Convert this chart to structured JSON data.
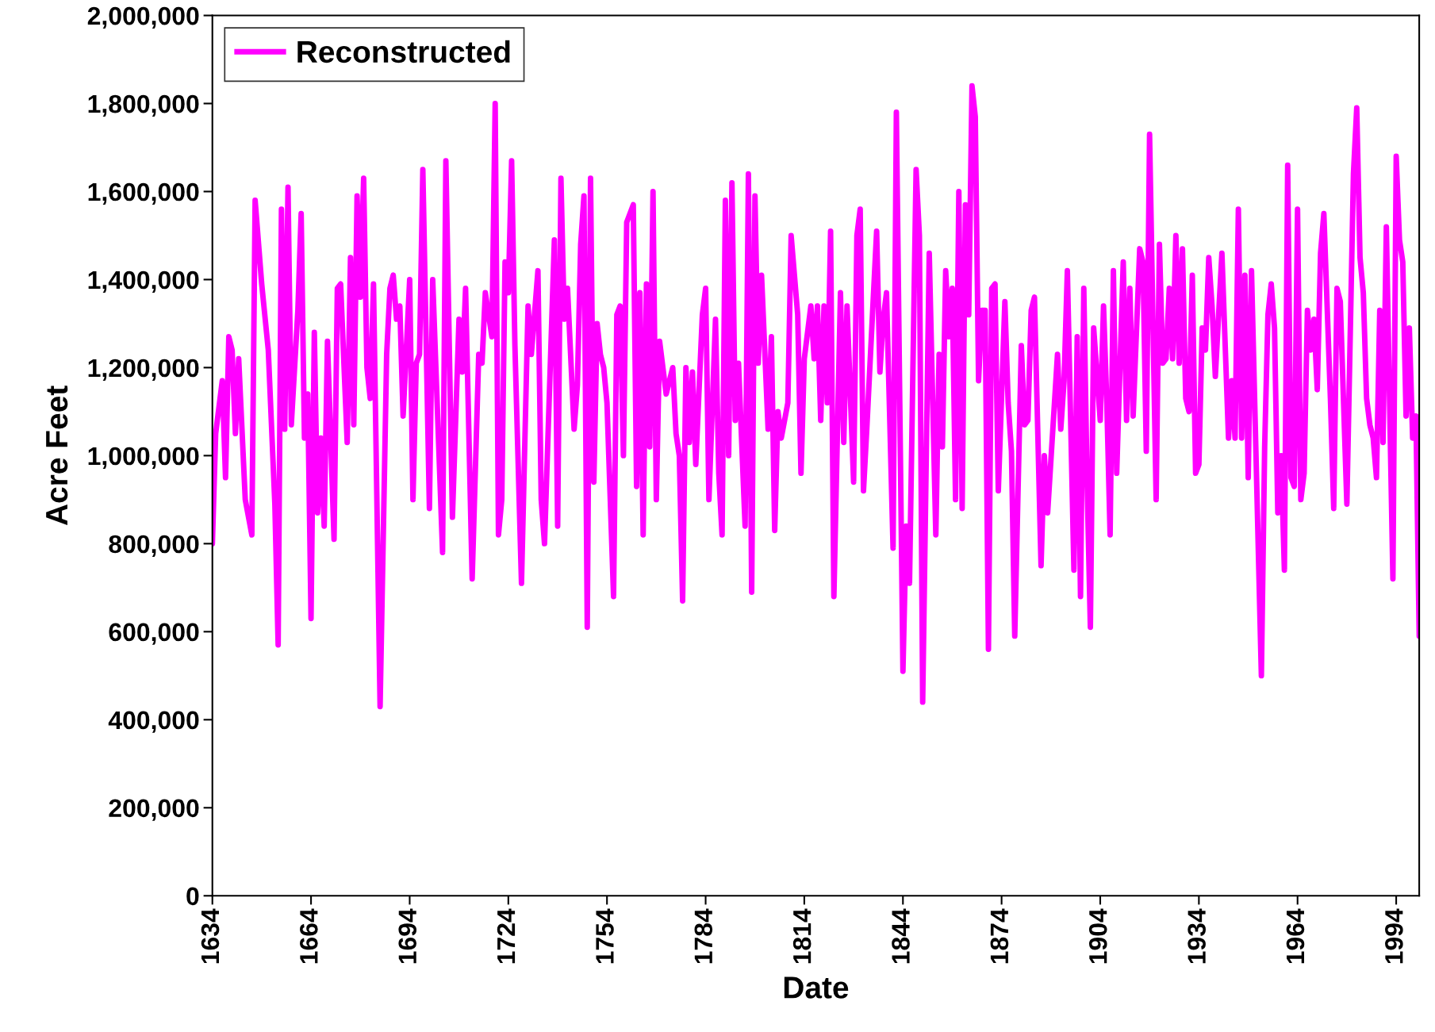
{
  "chart_data": {
    "type": "line",
    "xlabel": "Date",
    "ylabel": "Acre Feet",
    "xlim": [
      1634,
      2001
    ],
    "xticks": [
      1634,
      1664,
      1694,
      1724,
      1754,
      1784,
      1814,
      1844,
      1874,
      1904,
      1934,
      1964,
      1994
    ],
    "ylim": [
      0,
      2000000
    ],
    "yticks": [
      {
        "value": 0,
        "label": "0"
      },
      {
        "value": 200000,
        "label": "200,000"
      },
      {
        "value": 400000,
        "label": "400,000"
      },
      {
        "value": 600000,
        "label": "600,000"
      },
      {
        "value": 800000,
        "label": "800,000"
      },
      {
        "value": 1000000,
        "label": "1,000,000"
      },
      {
        "value": 1200000,
        "label": "1,200,000"
      },
      {
        "value": 1400000,
        "label": "1,400,000"
      },
      {
        "value": 1600000,
        "label": "1,600,000"
      },
      {
        "value": 1800000,
        "label": "1,800,000"
      },
      {
        "value": 2000000,
        "label": "2,000,000"
      }
    ],
    "grid": false,
    "legend": "top left",
    "marker": "none",
    "line_style": "solid",
    "series": [
      {
        "name": "Reconstructed",
        "color": "#ff00ff",
        "x": [
          1634,
          1635,
          1637,
          1638,
          1639,
          1640,
          1641,
          1642,
          1644,
          1646,
          1647,
          1649,
          1651,
          1653,
          1654,
          1655,
          1656,
          1657,
          1658,
          1660,
          1661,
          1662,
          1663,
          1664,
          1665,
          1666,
          1667,
          1668,
          1669,
          1671,
          1672,
          1673,
          1675,
          1676,
          1677,
          1678,
          1679,
          1680,
          1681,
          1682,
          1683,
          1685,
          1687,
          1688,
          1689,
          1690,
          1691,
          1692,
          1694,
          1695,
          1696,
          1697,
          1698,
          1700,
          1701,
          1704,
          1705,
          1707,
          1709,
          1710,
          1711,
          1713,
          1715,
          1716,
          1717,
          1719,
          1720,
          1721,
          1722,
          1723,
          1724,
          1725,
          1726,
          1728,
          1730,
          1731,
          1733,
          1734,
          1735,
          1738,
          1739,
          1740,
          1741,
          1742,
          1744,
          1745,
          1746,
          1747,
          1748,
          1749,
          1750,
          1751,
          1752,
          1753,
          1754,
          1756,
          1757,
          1758,
          1759,
          1760,
          1762,
          1763,
          1764,
          1765,
          1766,
          1767,
          1768,
          1769,
          1770,
          1772,
          1774,
          1775,
          1776,
          1777,
          1778,
          1779,
          1780,
          1781,
          1783,
          1784,
          1785,
          1787,
          1788,
          1789,
          1790,
          1791,
          1792,
          1793,
          1794,
          1796,
          1797,
          1798,
          1799,
          1800,
          1801,
          1803,
          1804,
          1805,
          1806,
          1807,
          1809,
          1810,
          1812,
          1813,
          1814,
          1816,
          1817,
          1818,
          1819,
          1820,
          1821,
          1822,
          1823,
          1825,
          1826,
          1827,
          1829,
          1830,
          1831,
          1832,
          1833,
          1836,
          1837,
          1838,
          1839,
          1841,
          1842,
          1844,
          1845,
          1846,
          1848,
          1849,
          1850,
          1852,
          1854,
          1855,
          1856,
          1857,
          1858,
          1859,
          1860,
          1861,
          1862,
          1863,
          1864,
          1865,
          1866,
          1867,
          1868,
          1869,
          1870,
          1871,
          1872,
          1873,
          1875,
          1876,
          1877,
          1878,
          1880,
          1881,
          1882,
          1883,
          1884,
          1886,
          1887,
          1888,
          1891,
          1892,
          1893,
          1894,
          1896,
          1897,
          1898,
          1899,
          1900,
          1901,
          1902,
          1904,
          1905,
          1906,
          1907,
          1908,
          1909,
          1911,
          1912,
          1913,
          1914,
          1916,
          1917,
          1918,
          1919,
          1921,
          1922,
          1923,
          1924,
          1925,
          1926,
          1927,
          1928,
          1929,
          1930,
          1931,
          1932,
          1933,
          1934,
          1935,
          1936,
          1937,
          1938,
          1939,
          1941,
          1943,
          1944,
          1945,
          1946,
          1947,
          1948,
          1949,
          1950,
          1953,
          1954,
          1955,
          1956,
          1957,
          1958,
          1959,
          1960,
          1961,
          1962,
          1963,
          1964,
          1965,
          1966,
          1967,
          1968,
          1969,
          1970,
          1971,
          1972,
          1974,
          1975,
          1976,
          1977,
          1979,
          1981,
          1982,
          1983,
          1984,
          1985,
          1986,
          1987,
          1988,
          1989,
          1990,
          1991,
          1993,
          1994,
          1995,
          1996,
          1997,
          1998,
          1999,
          2000,
          2001
        ],
        "values": [
          800000,
          1050000,
          1170000,
          950000,
          1270000,
          1240000,
          1050000,
          1220000,
          900000,
          820000,
          1580000,
          1390000,
          1240000,
          890000,
          570000,
          1560000,
          1060000,
          1610000,
          1070000,
          1330000,
          1550000,
          1040000,
          1140000,
          630000,
          1280000,
          870000,
          1040000,
          840000,
          1260000,
          810000,
          1380000,
          1390000,
          1030000,
          1450000,
          1070000,
          1590000,
          1360000,
          1630000,
          1200000,
          1130000,
          1390000,
          430000,
          1230000,
          1380000,
          1410000,
          1310000,
          1340000,
          1090000,
          1400000,
          900000,
          1210000,
          1230000,
          1650000,
          880000,
          1400000,
          780000,
          1670000,
          860000,
          1310000,
          1190000,
          1380000,
          720000,
          1230000,
          1210000,
          1370000,
          1270000,
          1800000,
          820000,
          900000,
          1440000,
          1370000,
          1670000,
          1250000,
          710000,
          1340000,
          1230000,
          1420000,
          900000,
          800000,
          1490000,
          840000,
          1630000,
          1310000,
          1380000,
          1060000,
          1160000,
          1480000,
          1590000,
          610000,
          1630000,
          940000,
          1300000,
          1230000,
          1200000,
          1120000,
          680000,
          1320000,
          1340000,
          1000000,
          1530000,
          1570000,
          930000,
          1370000,
          820000,
          1390000,
          1020000,
          1600000,
          900000,
          1260000,
          1140000,
          1200000,
          1050000,
          1000000,
          670000,
          1200000,
          1030000,
          1190000,
          980000,
          1320000,
          1380000,
          900000,
          1310000,
          960000,
          820000,
          1580000,
          1000000,
          1620000,
          1080000,
          1210000,
          840000,
          1640000,
          690000,
          1590000,
          1210000,
          1410000,
          1060000,
          1270000,
          830000,
          1100000,
          1040000,
          1120000,
          1500000,
          1320000,
          960000,
          1220000,
          1340000,
          1220000,
          1340000,
          1080000,
          1340000,
          1120000,
          1510000,
          680000,
          1370000,
          1030000,
          1340000,
          940000,
          1500000,
          1560000,
          920000,
          1060000,
          1510000,
          1190000,
          1310000,
          1370000,
          790000,
          1780000,
          510000,
          840000,
          710000,
          1650000,
          1500000,
          440000,
          1460000,
          820000,
          1230000,
          1020000,
          1420000,
          1270000,
          1380000,
          900000,
          1600000,
          880000,
          1570000,
          1320000,
          1840000,
          1770000,
          1170000,
          1330000,
          1330000,
          560000,
          1380000,
          1390000,
          920000,
          1350000,
          1120000,
          1010000,
          590000,
          1250000,
          1070000,
          1080000,
          1330000,
          1360000,
          750000,
          1000000,
          870000,
          1230000,
          1060000,
          1170000,
          1420000,
          740000,
          1270000,
          680000,
          1380000,
          940000,
          610000,
          1290000,
          1080000,
          1340000,
          1120000,
          820000,
          1420000,
          960000,
          1440000,
          1080000,
          1380000,
          1090000,
          1470000,
          1440000,
          1010000,
          1730000,
          900000,
          1480000,
          1210000,
          1220000,
          1380000,
          1220000,
          1500000,
          1210000,
          1470000,
          1130000,
          1100000,
          1410000,
          960000,
          980000,
          1290000,
          1240000,
          1450000,
          1340000,
          1180000,
          1460000,
          1040000,
          1170000,
          1040000,
          1560000,
          1040000,
          1410000,
          950000,
          1420000,
          500000,
          1020000,
          1320000,
          1390000,
          1290000,
          870000,
          1000000,
          740000,
          1660000,
          950000,
          930000,
          1560000,
          900000,
          960000,
          1330000,
          1240000,
          1310000,
          1150000,
          1460000,
          1550000,
          1130000,
          880000,
          1380000,
          1350000,
          890000,
          1640000,
          1790000,
          1450000,
          1370000,
          1130000,
          1070000,
          1040000,
          950000,
          1330000,
          1030000,
          1520000,
          720000,
          1680000,
          1490000,
          1440000,
          1090000,
          1290000,
          1040000,
          1090000,
          590000
        ]
      }
    ]
  }
}
